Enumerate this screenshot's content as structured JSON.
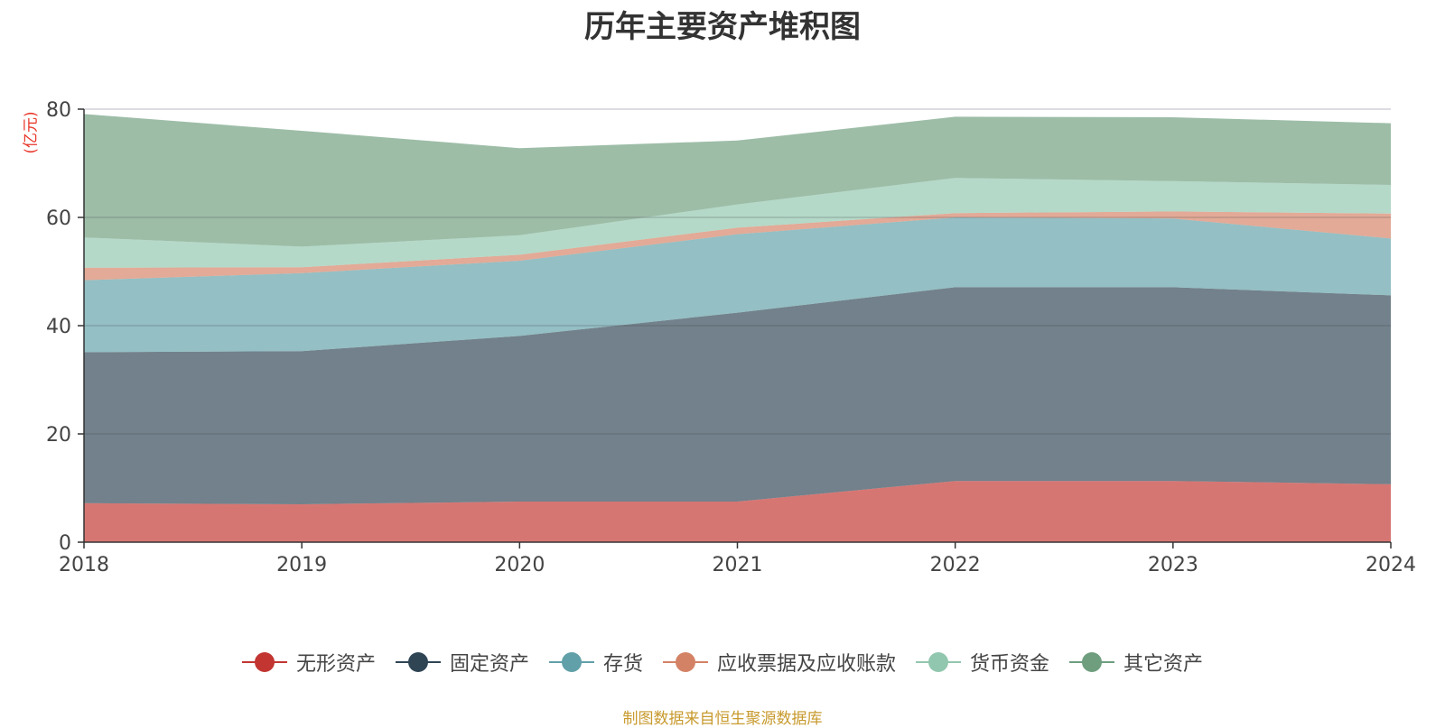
{
  "title": "历年主要资产堆积图",
  "unit_label": "(亿元)",
  "source": "制图数据来自恒生聚源数据库",
  "chart_data": {
    "type": "area",
    "stacked": true,
    "title": "历年主要资产堆积图",
    "ylabel": "(亿元)",
    "x": [
      "2018",
      "2019",
      "2020",
      "2021",
      "2022",
      "2023",
      "2024"
    ],
    "ylim": [
      0,
      80
    ],
    "yticks": [
      0,
      20,
      40,
      60,
      80
    ],
    "grid": true,
    "legend": "bottom",
    "series": [
      {
        "name": "无形资产",
        "color": "#c23531",
        "values": [
          7.2,
          7.0,
          7.5,
          7.5,
          11.3,
          11.3,
          10.7
        ]
      },
      {
        "name": "固定资产",
        "color": "#2f4554",
        "values": [
          27.9,
          28.3,
          30.6,
          34.9,
          35.8,
          35.8,
          34.9
        ]
      },
      {
        "name": "存货",
        "color": "#61a0a8",
        "values": [
          13.3,
          14.4,
          13.9,
          14.5,
          12.9,
          12.7,
          10.5
        ]
      },
      {
        "name": "应收票据及应收账款",
        "color": "#d48265",
        "values": [
          2.3,
          1.1,
          1.1,
          1.2,
          0.8,
          1.3,
          4.6
        ]
      },
      {
        "name": "货币资金",
        "color": "#91c7ae",
        "values": [
          5.6,
          3.8,
          3.6,
          4.3,
          6.5,
          5.6,
          5.3
        ]
      },
      {
        "name": "其它资产",
        "color": "#6e9e7e",
        "values": [
          22.8,
          21.4,
          16.1,
          11.8,
          11.3,
          11.8,
          11.4
        ]
      }
    ]
  }
}
